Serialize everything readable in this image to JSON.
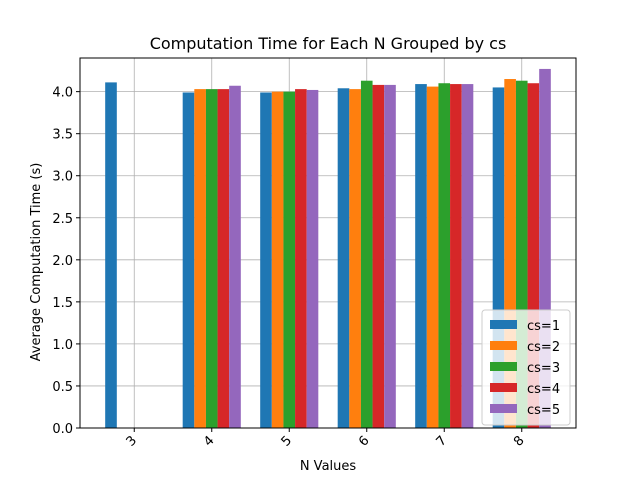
{
  "chart_data": {
    "type": "bar",
    "title": "Computation Time for Each N Grouped by cs",
    "xlabel": "N Values",
    "ylabel": "Average Computation Time (s)",
    "categories": [
      "3",
      "4",
      "5",
      "6",
      "7",
      "8"
    ],
    "ylim": [
      0,
      4.4
    ],
    "yticks": [
      "0.0",
      "0.5",
      "1.0",
      "1.5",
      "2.0",
      "2.5",
      "3.0",
      "3.5",
      "4.0"
    ],
    "grid": true,
    "legend_position": "lower right",
    "series": [
      {
        "name": "cs=1",
        "color": "#1f77b4",
        "values": [
          4.11,
          3.99,
          3.99,
          4.04,
          4.09,
          4.05
        ]
      },
      {
        "name": "cs=2",
        "color": "#ff7f0e",
        "values": [
          null,
          4.03,
          4.0,
          4.03,
          4.06,
          4.15
        ]
      },
      {
        "name": "cs=3",
        "color": "#2ca02c",
        "values": [
          null,
          4.03,
          4.0,
          4.13,
          4.1,
          4.13
        ]
      },
      {
        "name": "cs=4",
        "color": "#d62728",
        "values": [
          null,
          4.03,
          4.03,
          4.08,
          4.09,
          4.1
        ]
      },
      {
        "name": "cs=5",
        "color": "#9467bd",
        "values": [
          null,
          4.07,
          4.02,
          4.08,
          4.09,
          4.27
        ]
      }
    ]
  }
}
